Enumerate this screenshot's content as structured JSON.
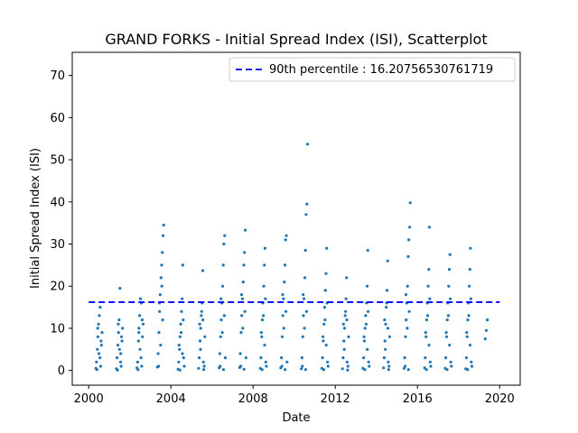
{
  "chart_data": {
    "type": "scatter",
    "title": "GRAND FORKS - Initial Spread Index (ISI), Scatterplot",
    "xlabel": "Date",
    "ylabel": "Initial Spread Index (ISI)",
    "xlim": [
      1999.2,
      2021.0
    ],
    "ylim": [
      -3.5,
      75.5
    ],
    "xticks": [
      2000,
      2004,
      2008,
      2012,
      2016,
      2020
    ],
    "xtick_labels": [
      "2000",
      "2004",
      "2008",
      "2012",
      "2016",
      "2020"
    ],
    "yticks": [
      0,
      10,
      20,
      30,
      40,
      50,
      60,
      70
    ],
    "ytick_labels": [
      "0",
      "10",
      "20",
      "30",
      "40",
      "50",
      "60",
      "70"
    ],
    "grid": false,
    "legend_position": "top-right",
    "reference_line": {
      "label": "90th percentile : 16.20756530761719",
      "value": 16.20756530761719,
      "x_range": [
        2000,
        2020
      ],
      "color": "#0000ff",
      "style": "dashed"
    },
    "point_color": "#1f77b4",
    "series": [
      {
        "season_years": [
          2000,
          2001,
          2002,
          2003,
          2004,
          2005,
          2006,
          2007,
          2008,
          2009,
          2010,
          2011,
          2012,
          2013,
          2014,
          2015,
          2016,
          2017,
          2018
        ],
        "x": [
          2000.35,
          2000.38,
          2000.42,
          2000.45,
          2000.48,
          2000.52,
          2000.55,
          2000.58,
          2000.62,
          2000.65,
          2000.4,
          2000.5,
          2000.6,
          2000.44,
          2000.56,
          2001.35,
          2001.38,
          2001.42,
          2001.45,
          2001.48,
          2001.52,
          2001.55,
          2001.58,
          2001.62,
          2001.65,
          2001.4,
          2001.5,
          2001.6,
          2001.44,
          2001.56,
          2002.35,
          2002.38,
          2002.42,
          2002.45,
          2002.48,
          2002.52,
          2002.55,
          2002.58,
          2002.62,
          2002.65,
          2002.4,
          2002.5,
          2002.6,
          2002.44,
          2002.56,
          2003.35,
          2003.38,
          2003.42,
          2003.45,
          2003.48,
          2003.52,
          2003.55,
          2003.58,
          2003.62,
          2003.65,
          2003.4,
          2003.5,
          2003.6,
          2003.44,
          2003.56,
          2004.35,
          2004.38,
          2004.42,
          2004.45,
          2004.48,
          2004.52,
          2004.55,
          2004.58,
          2004.62,
          2004.65,
          2004.4,
          2004.5,
          2004.6,
          2004.44,
          2004.56,
          2005.35,
          2005.38,
          2005.42,
          2005.45,
          2005.48,
          2005.52,
          2005.55,
          2005.58,
          2005.62,
          2005.65,
          2005.4,
          2005.5,
          2005.6,
          2005.44,
          2005.56,
          2006.35,
          2006.38,
          2006.42,
          2006.45,
          2006.48,
          2006.52,
          2006.55,
          2006.58,
          2006.62,
          2006.65,
          2006.4,
          2006.5,
          2006.6,
          2006.44,
          2006.56,
          2007.35,
          2007.38,
          2007.42,
          2007.45,
          2007.48,
          2007.52,
          2007.55,
          2007.58,
          2007.62,
          2007.65,
          2007.4,
          2007.5,
          2007.6,
          2007.44,
          2007.56,
          2008.35,
          2008.38,
          2008.42,
          2008.45,
          2008.48,
          2008.52,
          2008.55,
          2008.58,
          2008.62,
          2008.65,
          2008.4,
          2008.5,
          2008.6,
          2008.44,
          2008.56,
          2009.35,
          2009.38,
          2009.42,
          2009.45,
          2009.48,
          2009.52,
          2009.55,
          2009.58,
          2009.62,
          2009.65,
          2009.4,
          2009.5,
          2009.6,
          2009.44,
          2009.56,
          2010.35,
          2010.38,
          2010.42,
          2010.45,
          2010.48,
          2010.52,
          2010.55,
          2010.58,
          2010.62,
          2010.65,
          2010.4,
          2010.5,
          2010.6,
          2010.44,
          2010.56,
          2011.35,
          2011.38,
          2011.42,
          2011.45,
          2011.48,
          2011.52,
          2011.55,
          2011.58,
          2011.62,
          2011.65,
          2011.4,
          2011.5,
          2011.6,
          2011.44,
          2011.56,
          2012.35,
          2012.38,
          2012.42,
          2012.45,
          2012.48,
          2012.52,
          2012.55,
          2012.58,
          2012.62,
          2012.65,
          2012.4,
          2012.5,
          2012.6,
          2012.44,
          2012.56,
          2013.35,
          2013.38,
          2013.42,
          2013.45,
          2013.48,
          2013.52,
          2013.55,
          2013.58,
          2013.62,
          2013.65,
          2013.4,
          2013.5,
          2013.6,
          2013.44,
          2013.56,
          2014.35,
          2014.38,
          2014.42,
          2014.45,
          2014.48,
          2014.52,
          2014.55,
          2014.58,
          2014.62,
          2014.65,
          2014.4,
          2014.5,
          2014.6,
          2014.44,
          2014.56,
          2015.35,
          2015.38,
          2015.42,
          2015.45,
          2015.48,
          2015.52,
          2015.55,
          2015.58,
          2015.62,
          2015.65,
          2015.4,
          2015.5,
          2015.6,
          2015.44,
          2015.56,
          2016.35,
          2016.38,
          2016.42,
          2016.45,
          2016.48,
          2016.52,
          2016.55,
          2016.58,
          2016.62,
          2016.65,
          2016.4,
          2016.5,
          2016.6,
          2016.44,
          2016.56,
          2017.35,
          2017.38,
          2017.42,
          2017.45,
          2017.48,
          2017.52,
          2017.55,
          2017.58,
          2017.62,
          2017.65,
          2017.4,
          2017.5,
          2017.6,
          2017.44,
          2017.56,
          2018.35,
          2018.38,
          2018.42,
          2018.45,
          2018.48,
          2018.52,
          2018.55,
          2018.58,
          2018.62,
          2018.65,
          2018.4,
          2018.5,
          2018.6,
          2018.44,
          2018.56,
          2019.3,
          2019.35,
          2019.4
        ],
        "y": [
          0.5,
          2,
          5,
          8,
          11,
          13,
          3,
          1,
          6,
          9,
          0.2,
          4,
          7,
          10,
          15,
          0.4,
          3,
          6,
          9,
          12,
          19.5,
          2,
          1,
          7,
          10,
          0.1,
          5,
          8,
          11,
          4,
          0.6,
          2,
          7,
          10,
          13,
          17,
          3,
          1,
          8,
          11,
          0.2,
          5,
          12,
          9,
          16,
          0.8,
          4,
          9,
          14,
          18,
          22,
          25,
          28,
          32,
          34.5,
          1,
          6,
          12,
          16,
          20,
          0.3,
          2,
          5,
          8,
          11,
          14,
          17,
          25,
          3,
          1,
          6,
          9,
          12,
          0.1,
          4,
          0.5,
          3,
          7,
          10,
          13,
          16,
          23.7,
          2,
          1,
          8,
          11,
          14,
          0.2,
          5,
          12,
          0.6,
          4,
          8,
          12,
          16,
          20,
          25,
          30,
          32,
          3,
          1,
          9,
          13,
          17,
          0.2,
          0.7,
          4,
          9,
          13,
          17,
          21,
          25,
          28,
          33.3,
          3,
          1,
          10,
          14,
          18,
          0.3,
          0.5,
          3,
          8,
          12,
          16,
          20,
          25,
          29,
          2,
          1,
          9,
          13,
          17,
          0.2,
          6,
          0.6,
          3,
          8,
          13,
          17,
          21,
          25,
          31,
          32,
          2,
          1,
          10,
          14,
          18,
          0.2,
          0.4,
          3,
          8,
          13,
          17,
          22,
          28.5,
          37,
          39.5,
          53.7,
          1,
          10,
          14,
          18,
          0.2,
          0.5,
          3,
          7,
          11,
          15,
          19,
          23,
          29,
          2,
          1,
          8,
          12,
          16,
          0.2,
          6,
          0.4,
          3,
          7,
          10,
          13,
          17,
          22,
          2,
          1,
          8,
          11,
          14,
          0.1,
          5,
          12,
          0.5,
          3,
          7,
          10,
          13,
          16,
          20,
          28.5,
          2,
          1,
          8,
          11,
          14,
          0.2,
          5,
          0.6,
          3,
          7,
          11,
          15,
          19,
          26,
          2,
          1,
          8,
          12,
          16,
          0.2,
          5,
          10,
          0.5,
          3,
          8,
          12,
          16,
          20,
          27,
          31,
          34,
          39.8,
          1,
          10,
          14,
          18,
          0.2,
          0.6,
          3,
          8,
          12,
          16,
          20,
          24,
          34,
          2,
          1,
          9,
          13,
          17,
          0.2,
          6,
          0.5,
          3,
          8,
          12,
          16,
          20,
          24,
          27.5,
          2,
          1,
          9,
          13,
          17,
          0.2,
          6,
          0.4,
          3,
          8,
          12,
          16,
          20,
          24,
          29,
          2,
          1,
          9,
          13,
          17,
          0.2,
          6,
          7.5,
          9.5,
          12
        ]
      }
    ]
  }
}
